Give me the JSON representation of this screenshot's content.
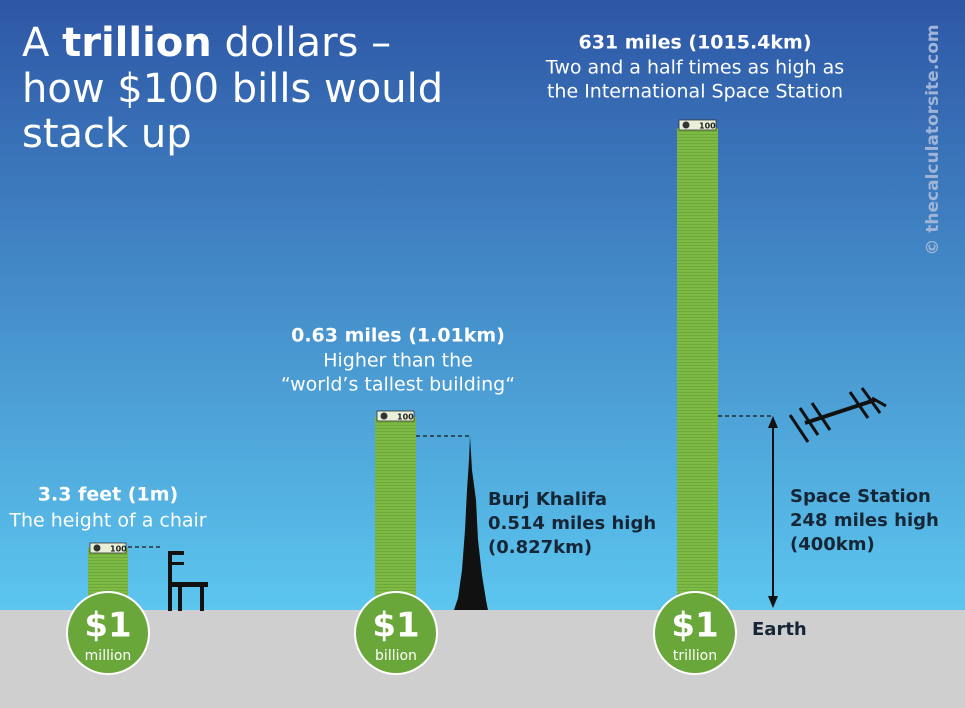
{
  "header": {
    "title": {
      "start": "A",
      "bold": "trillion",
      "end": "dollars –",
      "line2": "how $100 bills would",
      "line3": "stack up"
    }
  },
  "watermark": "© thecalculatorsite.com",
  "stacks": [
    {
      "amount": "$1",
      "unit": "million",
      "bill": "100",
      "heading": "3.3 feet (1m)",
      "lines": [
        "The height of a chair"
      ]
    },
    {
      "amount": "$1",
      "unit": "billion",
      "bill": "100",
      "heading": "0.63 miles (1.01km)",
      "lines": [
        "Higher than the",
        "“world’s tallest building“"
      ]
    },
    {
      "amount": "$1",
      "unit": "trillion",
      "bill": "100",
      "heading": "631 miles (1015.4km)",
      "lines": [
        "Two and a half times as high as",
        "the International Space Station"
      ]
    }
  ],
  "comparisons": [
    {
      "name": "Burj Khalifa",
      "height": "0.514 miles high",
      "metric": "(0.827km)"
    },
    {
      "name": "Space Station",
      "height": "248 miles high",
      "metric": "(400km)"
    }
  ],
  "ground": "Earth"
}
